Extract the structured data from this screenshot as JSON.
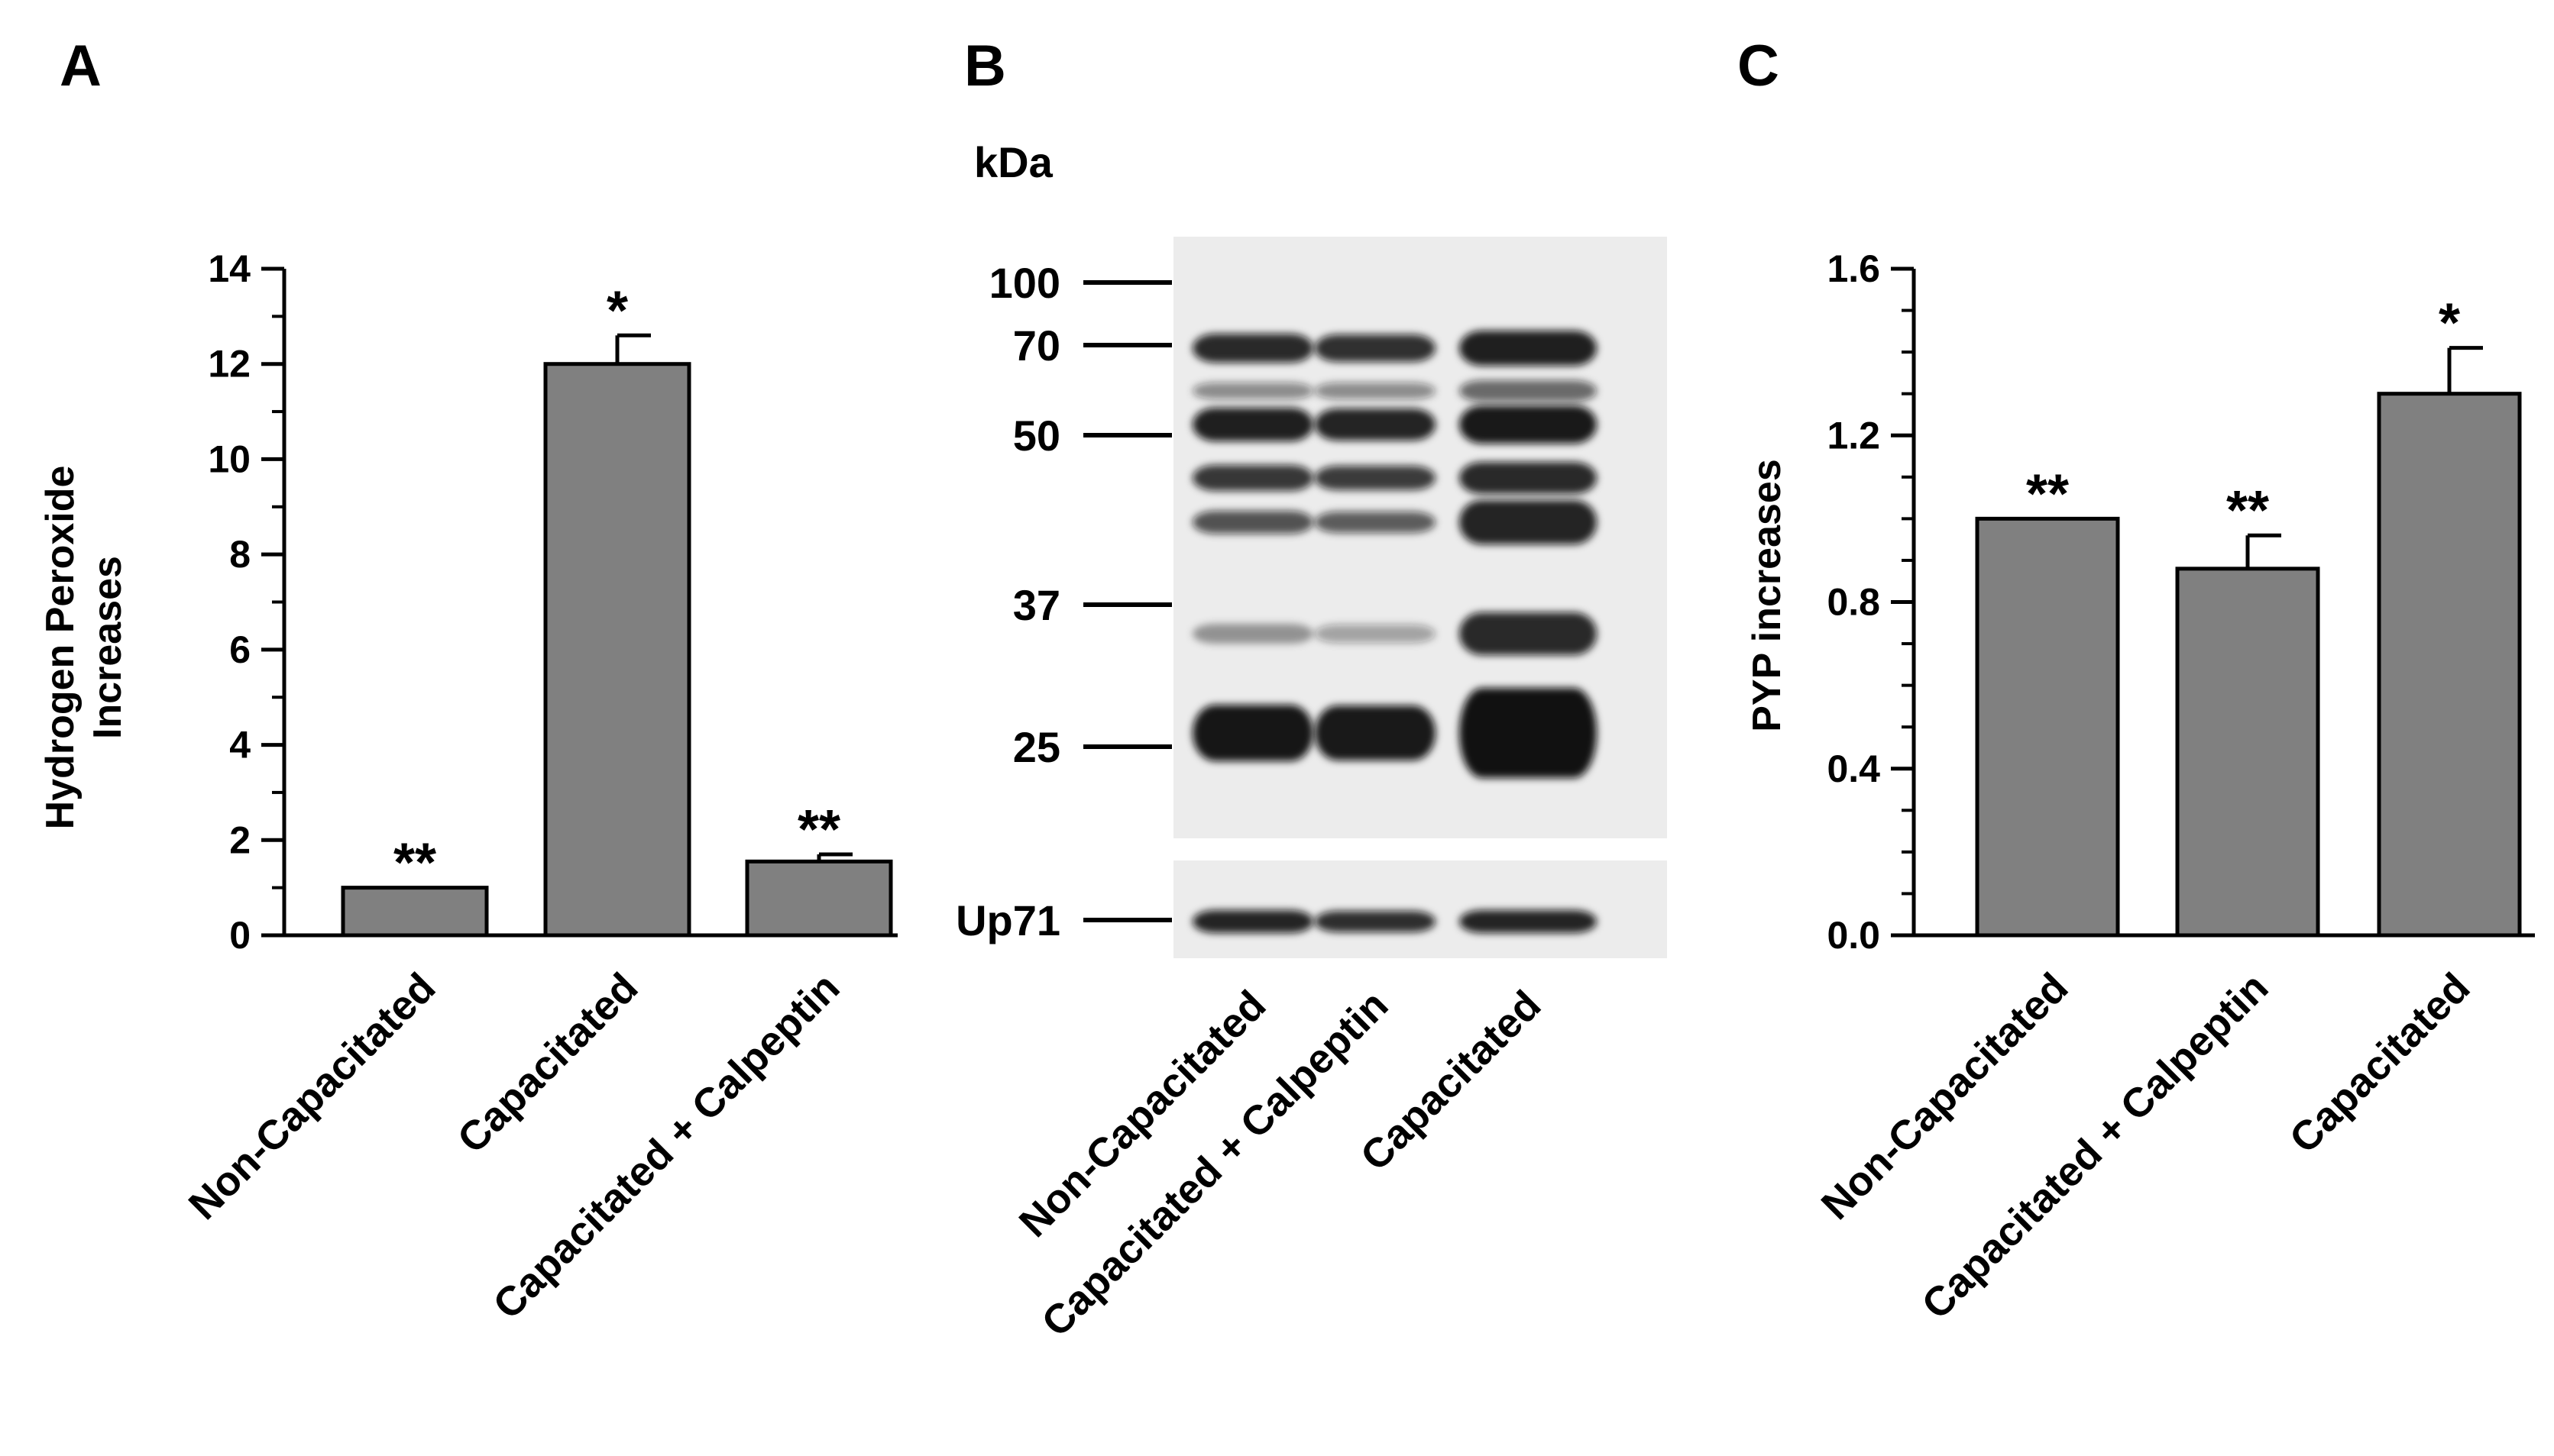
{
  "panels": {
    "a": {
      "letter": "A"
    },
    "b": {
      "letter": "B"
    },
    "c": {
      "letter": "C"
    }
  },
  "chart_data": [
    {
      "type": "bar",
      "panel": "A",
      "title": "",
      "xlabel": "",
      "ylabel": [
        "Hydrogen Peroxide",
        "Increases"
      ],
      "ylim": [
        0,
        14
      ],
      "yticks": [
        0,
        2,
        4,
        6,
        8,
        10,
        12,
        14
      ],
      "ytick_labels": [
        "0",
        "2",
        "4",
        "6",
        "8",
        "10",
        "12",
        "14"
      ],
      "categories": [
        "Non-Capacitated",
        "Capacitated",
        "Capacitated + Calpeptin"
      ],
      "values": [
        1.0,
        12.0,
        1.55
      ],
      "error": [
        0,
        0.6,
        0.15
      ],
      "annotations": [
        "**",
        "*",
        "**"
      ],
      "bar_color": "#808080",
      "grid": false
    },
    {
      "type": "western_blot",
      "panel": "B",
      "unit_label": "kDa",
      "markers": [
        "100",
        "70",
        "50",
        "37",
        "25"
      ],
      "loading_control": "Up71",
      "lanes": [
        "Non-Capacitated",
        "Capacitated + Calpeptin",
        "Capacitated"
      ]
    },
    {
      "type": "bar",
      "panel": "C",
      "title": "",
      "xlabel": "",
      "ylabel": "PYP increases",
      "ylim": [
        0,
        1.6
      ],
      "yticks": [
        0,
        0.4,
        0.8,
        1.2,
        1.6
      ],
      "ytick_labels": [
        "0.0",
        "0.4",
        "0.8",
        "1.2",
        "1.6"
      ],
      "categories": [
        "Non-Capacitated",
        "Capacitated + Calpeptin",
        "Capacitated"
      ],
      "values": [
        1.0,
        0.88,
        1.3
      ],
      "error": [
        0,
        0.08,
        0.11
      ],
      "annotations": [
        "**",
        "**",
        "*"
      ],
      "bar_color": "#808080",
      "grid": false
    }
  ]
}
